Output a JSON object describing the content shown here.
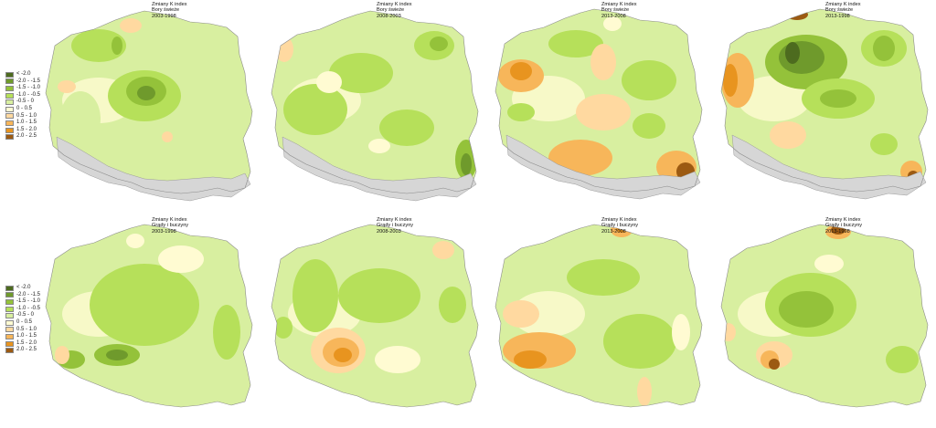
{
  "legend_top": {
    "items": [
      {
        "label": "< -2.0",
        "color": "#4d6b1f"
      },
      {
        "label": "-2.0 - -1.5",
        "color": "#6f9a2c"
      },
      {
        "label": "-1.5 - -1.0",
        "color": "#94c23a"
      },
      {
        "label": "-1.0 - -0.5",
        "color": "#b6e05a"
      },
      {
        "label": "-0.5 - 0",
        "color": "#d8efa0"
      },
      {
        "label": "0 - 0.5",
        "color": "#fffbd2"
      },
      {
        "label": "0.5 - 1.0",
        "color": "#ffd9a0"
      },
      {
        "label": "1.0 - 1.5",
        "color": "#f7b65a"
      },
      {
        "label": "1.5 - 2.0",
        "color": "#e8941f"
      },
      {
        "label": "2.0 - 2.5",
        "color": "#9c5a12"
      }
    ]
  },
  "legend_bottom": {
    "items": [
      {
        "label": "< -2.0",
        "color": "#4d6b1f"
      },
      {
        "label": "-2.0 - -1.5",
        "color": "#6f9a2c"
      },
      {
        "label": "-1.5 - -1.0",
        "color": "#94c23a"
      },
      {
        "label": "-1.0 - -0.5",
        "color": "#b6e05a"
      },
      {
        "label": "-0.5 - 0",
        "color": "#d8efa0"
      },
      {
        "label": "0 - 0.5",
        "color": "#fffbd2"
      },
      {
        "label": "0.5 - 1.0",
        "color": "#ffd9a0"
      },
      {
        "label": "1.0 - 1.5",
        "color": "#f7b65a"
      },
      {
        "label": "1.5 - 2.0",
        "color": "#e8941f"
      },
      {
        "label": "2.0 - 2.5",
        "color": "#9c5a12"
      }
    ]
  },
  "maps": [
    {
      "title1": "Zmiany K index",
      "title2": "Bory świeże",
      "title3": "2003-1998",
      "mountain_color": "#d6d6d6"
    },
    {
      "title1": "Zmiany K index",
      "title2": "Bory świeże",
      "title3": "2008-2003",
      "mountain_color": "#d6d6d6"
    },
    {
      "title1": "Zmiany K index",
      "title2": "Bory świeże",
      "title3": "2013-2008",
      "mountain_color": "#d6d6d6"
    },
    {
      "title1": "Zmiany K index",
      "title2": "Bory świeże",
      "title3": "2013-1998",
      "mountain_color": "#d6d6d6"
    },
    {
      "title1": "Zmiany K index",
      "title2": "Grądy i buczyny",
      "title3": "2003-1998"
    },
    {
      "title1": "Zmiany K index",
      "title2": "Grądy i buczyny",
      "title3": "2008-2003"
    },
    {
      "title1": "Zmiany K index",
      "title2": "Grądy i buczyny",
      "title3": "2013-2008"
    },
    {
      "title1": "Zmiany K index",
      "title2": "Grądy i buczyny",
      "title3": "2013-1998"
    }
  ],
  "colors": {
    "base": "#d8efa0",
    "light": "#fffbd2",
    "mid_green": "#b6e05a",
    "green": "#94c23a",
    "dark_green": "#6f9a2c",
    "darkest_green": "#4d6b1f",
    "light_orange": "#ffd9a0",
    "orange": "#f7b65a",
    "deep_orange": "#e8941f",
    "brown": "#9c5a12",
    "mountain": "#d6d6d6"
  }
}
